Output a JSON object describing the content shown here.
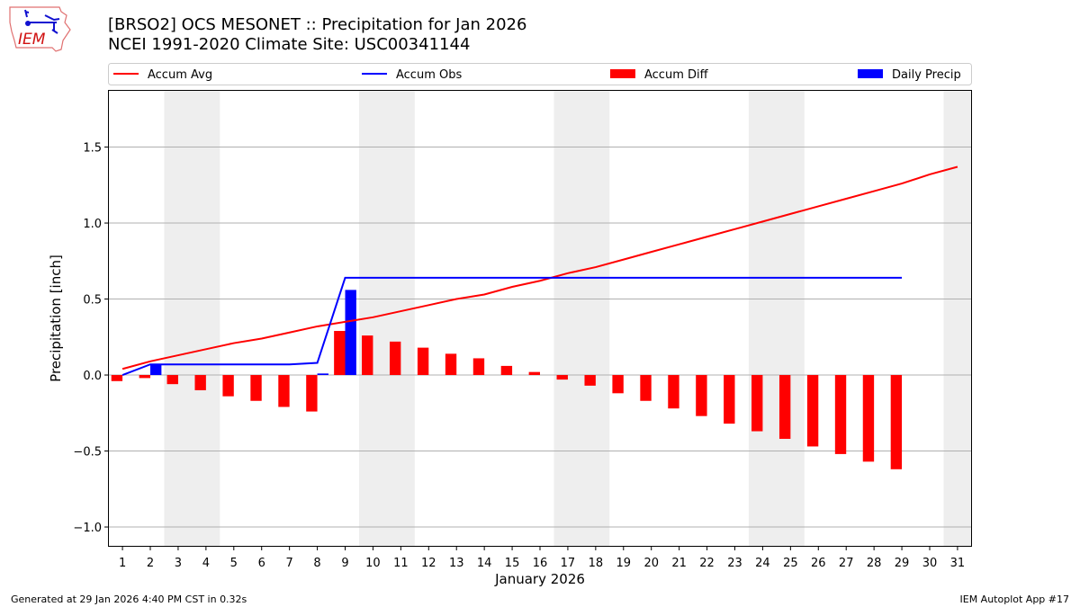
{
  "header": {
    "title_line1": "[BRSO2] OCS MESONET :: Precipitation for Jan 2026",
    "title_line2": "NCEI 1991-2020 Climate Site: USC00341144",
    "logo_text": "IEM"
  },
  "footer": {
    "generated": "Generated at 29 Jan 2026 4:40 PM CST in 0.32s",
    "app": "IEM Autoplot App #17"
  },
  "chart_data": {
    "type": "bar",
    "xlabel": "January 2026",
    "ylabel": "Precipitation [inch]",
    "xlim": [
      0.48,
      31.52
    ],
    "ylim": [
      -1.13,
      1.876
    ],
    "yticks": [
      -1.0,
      -0.5,
      0.0,
      0.5,
      1.0,
      1.5
    ],
    "ytick_labels": [
      "−1.0",
      "−0.5",
      "0.0",
      "0.5",
      "1.0",
      "1.5"
    ],
    "xticks": [
      1,
      2,
      3,
      4,
      5,
      6,
      7,
      8,
      9,
      10,
      11,
      12,
      13,
      14,
      15,
      16,
      17,
      18,
      19,
      20,
      21,
      22,
      23,
      24,
      25,
      26,
      27,
      28,
      29,
      30,
      31
    ],
    "grid": "horizontal",
    "legend_position": "top",
    "weekend_shading": [
      [
        2.5,
        4.5
      ],
      [
        9.5,
        11.5
      ],
      [
        16.5,
        18.5
      ],
      [
        23.5,
        25.5
      ],
      [
        30.5,
        31.52
      ]
    ],
    "colors": {
      "avg": "#ff0000",
      "obs": "#0000ff",
      "diff": "#ff0000",
      "daily": "#0000ff",
      "shade": "#eeeeee",
      "grid": "#b0b0b0"
    },
    "series": [
      {
        "name": "Accum Avg",
        "kind": "line",
        "days": [
          1,
          2,
          3,
          4,
          5,
          6,
          7,
          8,
          9,
          10,
          11,
          12,
          13,
          14,
          15,
          16,
          17,
          18,
          19,
          20,
          21,
          22,
          23,
          24,
          25,
          26,
          27,
          28,
          29,
          30,
          31
        ],
        "values": [
          0.04,
          0.09,
          0.13,
          0.17,
          0.21,
          0.24,
          0.28,
          0.32,
          0.35,
          0.38,
          0.42,
          0.46,
          0.5,
          0.53,
          0.58,
          0.62,
          0.67,
          0.71,
          0.76,
          0.81,
          0.86,
          0.91,
          0.96,
          1.01,
          1.06,
          1.11,
          1.16,
          1.21,
          1.26,
          1.32,
          1.37
        ]
      },
      {
        "name": "Accum Obs",
        "kind": "line",
        "days": [
          1,
          2,
          3,
          4,
          5,
          6,
          7,
          8,
          9,
          10,
          11,
          12,
          13,
          14,
          15,
          16,
          17,
          18,
          19,
          20,
          21,
          22,
          23,
          24,
          25,
          26,
          27,
          28,
          29
        ],
        "values": [
          0.0,
          0.07,
          0.07,
          0.07,
          0.07,
          0.07,
          0.07,
          0.08,
          0.64,
          0.64,
          0.64,
          0.64,
          0.64,
          0.64,
          0.64,
          0.64,
          0.64,
          0.64,
          0.64,
          0.64,
          0.64,
          0.64,
          0.64,
          0.64,
          0.64,
          0.64,
          0.64,
          0.64,
          0.64
        ]
      },
      {
        "name": "Accum Diff",
        "kind": "bar",
        "days": [
          1,
          2,
          3,
          4,
          5,
          6,
          7,
          8,
          9,
          10,
          11,
          12,
          13,
          14,
          15,
          16,
          17,
          18,
          19,
          20,
          21,
          22,
          23,
          24,
          25,
          26,
          27,
          28,
          29
        ],
        "values": [
          -0.04,
          -0.02,
          -0.06,
          -0.1,
          -0.14,
          -0.17,
          -0.21,
          -0.24,
          0.29,
          0.26,
          0.22,
          0.18,
          0.14,
          0.11,
          0.06,
          0.02,
          -0.03,
          -0.07,
          -0.12,
          -0.17,
          -0.22,
          -0.27,
          -0.32,
          -0.37,
          -0.42,
          -0.47,
          -0.52,
          -0.57,
          -0.62
        ]
      },
      {
        "name": "Daily Precip",
        "kind": "bar",
        "days": [
          1,
          2,
          3,
          4,
          5,
          6,
          7,
          8,
          9,
          10,
          11,
          12,
          13,
          14,
          15,
          16,
          17,
          18,
          19,
          20,
          21,
          22,
          23,
          24,
          25,
          26,
          27,
          28,
          29
        ],
        "values": [
          0,
          0.07,
          0,
          0,
          0,
          0,
          0,
          0.01,
          0.56,
          0,
          0,
          0,
          0,
          0,
          0,
          0,
          0,
          0,
          0,
          0,
          0,
          0,
          0,
          0,
          0,
          0,
          0,
          0,
          0
        ]
      }
    ]
  }
}
